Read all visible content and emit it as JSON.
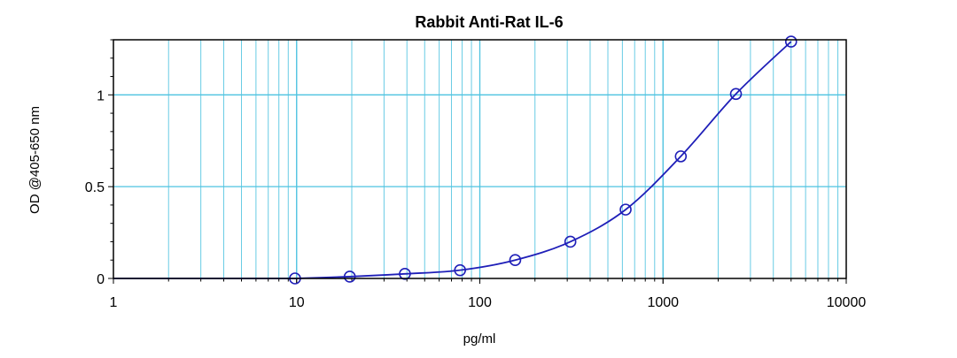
{
  "chart_data": {
    "type": "scatter",
    "title": "Rabbit Anti-Rat IL-6",
    "xlabel": "pg/ml",
    "ylabel": "OD @405-650 nm",
    "x_scale": "log",
    "xlim": [
      1,
      10000
    ],
    "ylim": [
      0,
      1.3
    ],
    "x_ticks": [
      1,
      10,
      100,
      1000,
      10000
    ],
    "x_tick_labels": [
      "1",
      "10",
      "100",
      "1000",
      "10000"
    ],
    "y_ticks": [
      0,
      0.5,
      1
    ],
    "y_tick_labels": [
      "0",
      "0.5",
      "1"
    ],
    "grid": true,
    "series": [
      {
        "x": [
          9.8,
          19.5,
          39,
          78,
          156,
          312,
          625,
          1250,
          2500,
          5000
        ],
        "y": [
          0.0,
          0.01,
          0.025,
          0.045,
          0.1,
          0.2,
          0.375,
          0.665,
          1.005,
          1.29
        ]
      }
    ],
    "colors": {
      "grid": "#4ec3e0",
      "series": "#1f1fb8",
      "axis": "#000000"
    }
  }
}
